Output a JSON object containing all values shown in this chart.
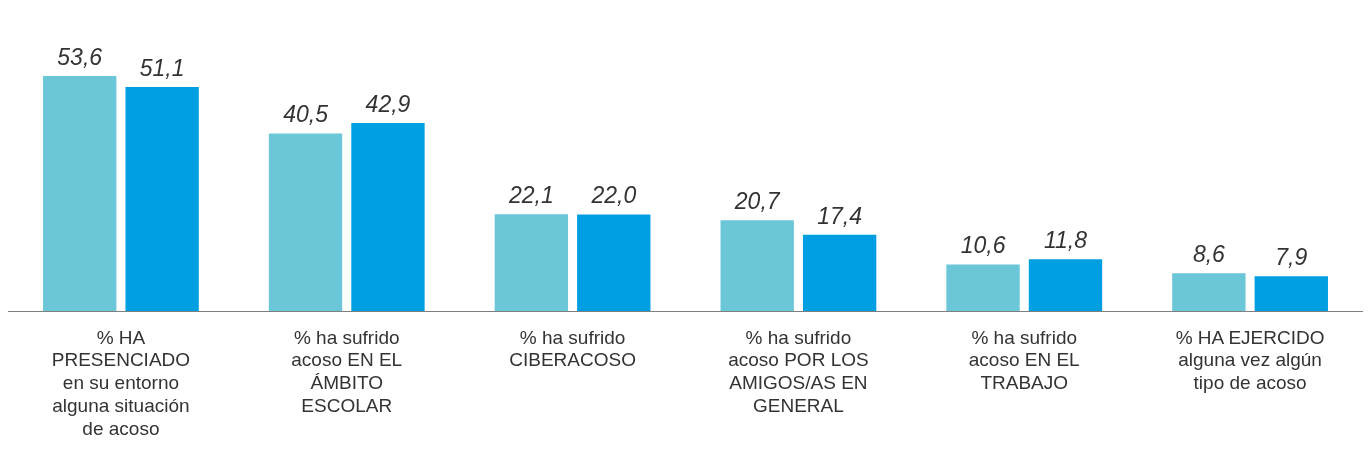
{
  "chart_data": {
    "type": "bar",
    "categories": [
      "% HA PRESENCIADO en su entorno alguna situación de acoso",
      "% ha sufrido acoso EN EL ÁMBITO ESCOLAR",
      "% ha sufrido CIBERACOSO",
      "% ha sufrido acoso POR LOS AMIGOS/AS EN GENERAL",
      "% ha sufrido acoso EN EL TRABAJO",
      "% HA EJERCIDO alguna vez algún tipo de acoso"
    ],
    "series": [
      {
        "color": "#6bc7d8",
        "values": [
          53.6,
          40.5,
          22.1,
          20.7,
          10.6,
          8.6
        ],
        "value_labels": [
          "53,6",
          "40,5",
          "22,1",
          "20,7",
          "10,6",
          "8,6"
        ]
      },
      {
        "color": "#009fe1",
        "values": [
          51.1,
          42.9,
          22.0,
          17.4,
          11.8,
          7.9
        ],
        "value_labels": [
          "51,1",
          "42,9",
          "22,0",
          "17,4",
          "11,8",
          "7,9"
        ]
      }
    ],
    "grid": false,
    "legend": false
  }
}
